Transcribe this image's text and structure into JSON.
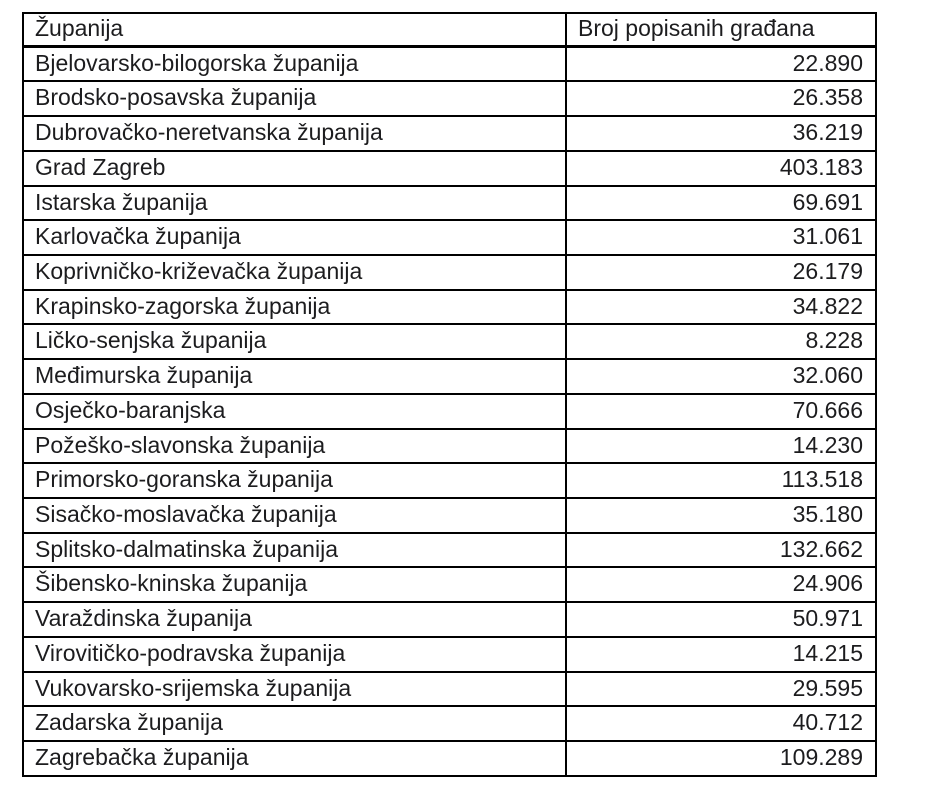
{
  "table": {
    "headers": [
      "Županija",
      "Broj popisanih građana"
    ],
    "rows": [
      {
        "county": "Bjelovarsko-bilogorska županija",
        "count": "22.890"
      },
      {
        "county": "Brodsko-posavska županija",
        "count": "26.358"
      },
      {
        "county": "Dubrovačko-neretvanska županija",
        "count": "36.219"
      },
      {
        "county": "Grad Zagreb",
        "count": "403.183"
      },
      {
        "county": "Istarska županija",
        "count": "69.691"
      },
      {
        "county": "Karlovačka županija",
        "count": "31.061"
      },
      {
        "county": "Koprivničko-križevačka županija",
        "count": "26.179"
      },
      {
        "county": "Krapinsko-zagorska županija",
        "count": "34.822"
      },
      {
        "county": "Ličko-senjska županija",
        "count": "8.228"
      },
      {
        "county": "Međimurska županija",
        "count": "32.060"
      },
      {
        "county": "Osječko-baranjska",
        "count": "70.666"
      },
      {
        "county": "Požeško-slavonska županija",
        "count": "14.230"
      },
      {
        "county": "Primorsko-goranska županija",
        "count": "113.518"
      },
      {
        "county": "Sisačko-moslavačka županija",
        "count": "35.180"
      },
      {
        "county": "Splitsko-dalmatinska županija",
        "count": "132.662"
      },
      {
        "county": "Šibensko-kninska županija",
        "count": "24.906"
      },
      {
        "county": "Varaždinska županija",
        "count": "50.971"
      },
      {
        "county": "Virovitičko-podravska županija",
        "count": "14.215"
      },
      {
        "county": "Vukovarsko-srijemska županija",
        "count": "29.595"
      },
      {
        "county": "Zadarska županija",
        "count": "40.712"
      },
      {
        "county": "Zagrebačka županija",
        "count": "109.289"
      }
    ],
    "colors": {
      "border": "#000000",
      "text": "#1c1c1e",
      "background": "#ffffff"
    }
  }
}
